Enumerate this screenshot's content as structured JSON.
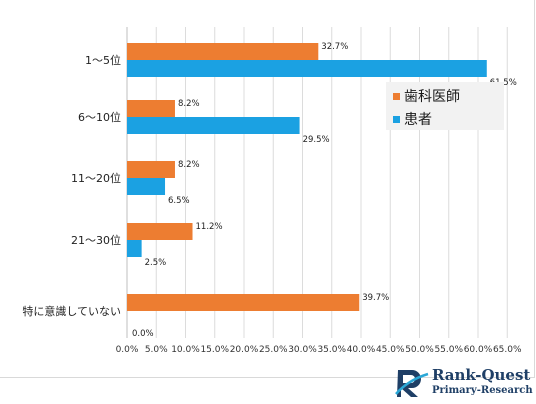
{
  "chart_data": {
    "type": "bar",
    "orientation": "horizontal",
    "categories": [
      "1～5位",
      "6～10位",
      "11～20位",
      "21～30位",
      "特に意識していない"
    ],
    "series": [
      {
        "name": "歯科医師",
        "values": [
          32.7,
          8.2,
          8.2,
          11.2,
          39.7
        ],
        "labels": [
          "32.7%",
          "8.2%",
          "8.2%",
          "11.2%",
          "39.7%"
        ],
        "color": "#ed7d31"
      },
      {
        "name": "患者",
        "values": [
          61.5,
          29.5,
          6.5,
          2.5,
          0.0
        ],
        "labels": [
          "61.5%",
          "29.5%",
          "6.5%",
          "2.5%",
          "0.0%"
        ],
        "color": "#1ba1e2"
      }
    ],
    "xlim": [
      0,
      65
    ],
    "xticks": [
      "0.0%",
      "5.0%",
      "10.0%",
      "15.0%",
      "20.0%",
      "25.0%",
      "30.0%",
      "35.0%",
      "40.0%",
      "45.0%",
      "50.0%",
      "55.0%",
      "60.0%",
      "65.0%"
    ],
    "grid": true,
    "legend_position": "right"
  },
  "logo": {
    "name": "Rank-Quest",
    "subtitle": "Primary-Research"
  }
}
